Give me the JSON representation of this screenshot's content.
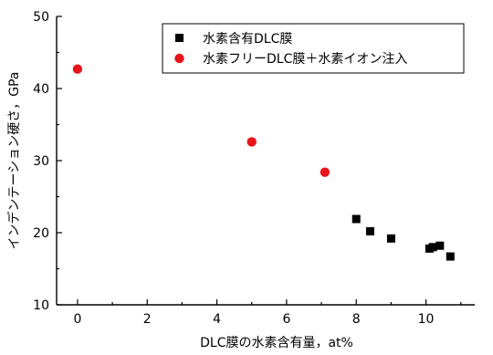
{
  "chart_data": {
    "type": "scatter",
    "title": "",
    "xlabel": "DLC膜の水素含有量，at%",
    "ylabel": "インデンテーション硬さ，GPa",
    "xlim": [
      -0.6,
      11.4
    ],
    "ylim": [
      10,
      50
    ],
    "xticks": [
      0,
      2,
      4,
      6,
      8,
      10
    ],
    "yticks": [
      10,
      20,
      30,
      40,
      50
    ],
    "grid": false,
    "legend_position": "top-right",
    "series": [
      {
        "name": "水素含有DLC膜",
        "marker": "square",
        "color": "#000000",
        "points": [
          {
            "x": 8.0,
            "y": 21.9
          },
          {
            "x": 8.4,
            "y": 20.2
          },
          {
            "x": 9.0,
            "y": 19.2
          },
          {
            "x": 10.1,
            "y": 17.8
          },
          {
            "x": 10.2,
            "y": 18.0
          },
          {
            "x": 10.4,
            "y": 18.2
          },
          {
            "x": 10.7,
            "y": 16.7
          }
        ]
      },
      {
        "name": "水素フリーDLC膜＋水素イオン注入",
        "marker": "circle",
        "color": "#e8141b",
        "points": [
          {
            "x": 0.0,
            "y": 42.7
          },
          {
            "x": 5.0,
            "y": 32.6
          },
          {
            "x": 7.1,
            "y": 28.4
          }
        ]
      }
    ]
  }
}
